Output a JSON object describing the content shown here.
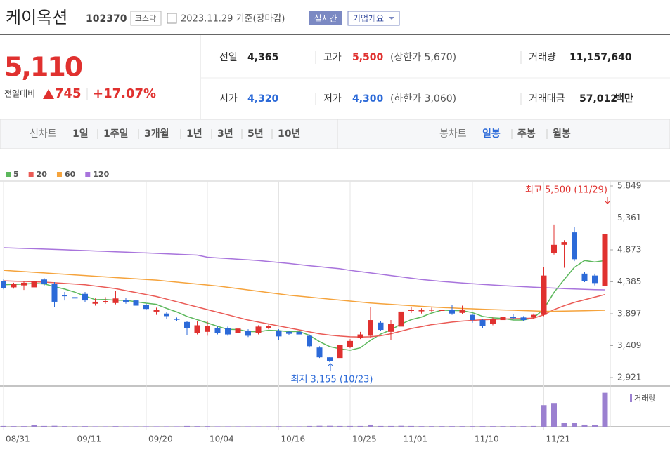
{
  "header": {
    "name": "케이옥션",
    "code": "102370",
    "market": "코스닥",
    "date": "2023.11.29 기준(장마감)",
    "realtime": "실시간",
    "company": "기업개요"
  },
  "quote": {
    "price": "5,110",
    "change_label": "전일대비",
    "change": "745",
    "rate": "+17.07%"
  },
  "stats": [
    {
      "label": "전일",
      "value": "4,365"
    },
    {
      "label": "고가",
      "value": "5,500",
      "extra": "(상한가 5,670)"
    },
    {
      "label": "거래량",
      "value": "11,157,640"
    },
    {
      "label": "시가",
      "value": "4,320"
    },
    {
      "label": "저가",
      "value": "4,300",
      "extra": "(하한가 3,060)"
    },
    {
      "label": "거래대금",
      "value": "57,012",
      "unit": "백만"
    }
  ],
  "tabs": {
    "line_label": "선차트",
    "line": [
      "1일",
      "1주일",
      "3개월",
      "1년",
      "3년",
      "5년",
      "10년"
    ],
    "candle_label": "봉차트",
    "candle": [
      "일봉",
      "주봉",
      "월봉"
    ]
  },
  "chart_data": {
    "type": "candlestick",
    "categories": [
      "08/31",
      null,
      null,
      null,
      null,
      null,
      null,
      "09/11",
      null,
      null,
      null,
      null,
      null,
      null,
      "09/20",
      null,
      null,
      null,
      null,
      null,
      "10/04",
      null,
      null,
      null,
      null,
      null,
      null,
      "10/16",
      null,
      null,
      null,
      null,
      null,
      null,
      "10/25",
      null,
      null,
      null,
      null,
      "11/01",
      null,
      null,
      null,
      null,
      null,
      null,
      "11/10",
      null,
      null,
      null,
      null,
      null,
      null,
      "11/21",
      null,
      null,
      null,
      null,
      null,
      null
    ],
    "open": [
      4400,
      4300,
      4330,
      4300,
      4420,
      4350,
      4180,
      4150,
      4200,
      4050,
      4080,
      4060,
      4110,
      4100,
      4030,
      3930,
      3900,
      3820,
      3770,
      3600,
      3620,
      3680,
      3680,
      3600,
      3640,
      3600,
      3680,
      3640,
      3620,
      3620,
      3560,
      3380,
      3230,
      3220,
      3390,
      3530,
      3560,
      3760,
      3620,
      3700,
      3940,
      3940,
      3950,
      3940,
      3960,
      3910,
      3880,
      3800,
      3740,
      3800,
      3850,
      3840,
      3840,
      3880,
      4830,
      4950,
      5140,
      4510,
      4480,
      4320
    ],
    "high": [
      4420,
      4370,
      4390,
      4640,
      4440,
      4380,
      4230,
      4170,
      4230,
      4130,
      4150,
      4250,
      4140,
      4130,
      4050,
      3990,
      3920,
      3840,
      3790,
      3780,
      3790,
      3700,
      3700,
      3700,
      3660,
      3720,
      3730,
      3660,
      3640,
      3640,
      3580,
      3400,
      3240,
      3440,
      3510,
      3620,
      4000,
      3780,
      3800,
      3960,
      4000,
      3980,
      3990,
      4000,
      4030,
      4020,
      3900,
      3820,
      3840,
      3870,
      3890,
      3860,
      3900,
      4610,
      5260,
      5020,
      5220,
      4540,
      4510,
      5500
    ],
    "low": [
      4270,
      4280,
      4260,
      4280,
      4330,
      4000,
      4100,
      4100,
      4080,
      4020,
      4050,
      4040,
      4050,
      4000,
      3950,
      3880,
      3820,
      3780,
      3570,
      3580,
      3560,
      3580,
      3560,
      3580,
      3540,
      3580,
      3660,
      3500,
      3570,
      3560,
      3380,
      3220,
      3155,
      3200,
      3370,
      3510,
      3530,
      3640,
      3500,
      3690,
      3910,
      3900,
      3920,
      3870,
      3880,
      3890,
      3760,
      3680,
      3720,
      3790,
      3810,
      3780,
      3820,
      3860,
      4800,
      4600,
      4700,
      4380,
      4330,
      4300
    ],
    "close": [
      4290,
      4350,
      4370,
      4400,
      4350,
      4080,
      4170,
      4130,
      4100,
      4080,
      4090,
      4130,
      4080,
      4020,
      3970,
      3960,
      3860,
      3810,
      3680,
      3720,
      3710,
      3600,
      3580,
      3670,
      3560,
      3700,
      3710,
      3550,
      3590,
      3580,
      3400,
      3230,
      3170,
      3420,
      3480,
      3580,
      3800,
      3650,
      3740,
      3930,
      3960,
      3950,
      3960,
      3960,
      3900,
      3950,
      3800,
      3710,
      3810,
      3850,
      3830,
      3800,
      3880,
      4480,
      4950,
      4990,
      4730,
      4400,
      4365,
      5110
    ],
    "up_color": "#e0312f",
    "down_color": "#2c6ad8",
    "series": [
      {
        "name": "5",
        "color": "#5cb85c",
        "values": [
          4340,
          4345,
          4350,
          4360,
          4352,
          4310,
          4274,
          4226,
          4166,
          4112,
          4114,
          4104,
          4102,
          4080,
          4058,
          4040,
          3978,
          3924,
          3856,
          3806,
          3756,
          3704,
          3658,
          3656,
          3624,
          3622,
          3644,
          3638,
          3622,
          3626,
          3566,
          3470,
          3394,
          3360,
          3340,
          3376,
          3490,
          3586,
          3650,
          3740,
          3806,
          3846,
          3908,
          3952,
          3946,
          3944,
          3914,
          3856,
          3834,
          3824,
          3800,
          3800,
          3834,
          3968,
          4222,
          4420,
          4606,
          4710,
          4687,
          4709
        ]
      },
      {
        "name": "20",
        "color": "#ea5a55",
        "values": [
          4400,
          4395,
          4390,
          4385,
          4380,
          4370,
          4360,
          4350,
          4340,
          4320,
          4300,
          4280,
          4250,
          4220,
          4190,
          4160,
          4120,
          4080,
          4040,
          4000,
          3960,
          3920,
          3880,
          3840,
          3800,
          3770,
          3740,
          3710,
          3680,
          3650,
          3620,
          3590,
          3570,
          3555,
          3545,
          3540,
          3545,
          3560,
          3590,
          3630,
          3670,
          3700,
          3730,
          3750,
          3770,
          3785,
          3795,
          3805,
          3810,
          3815,
          3820,
          3825,
          3830,
          3880,
          3960,
          4020,
          4070,
          4110,
          4150,
          4190
        ]
      },
      {
        "name": "60",
        "color": "#f5a33c",
        "values": [
          4560,
          4550,
          4540,
          4530,
          4520,
          4510,
          4500,
          4490,
          4480,
          4470,
          4460,
          4450,
          4440,
          4430,
          4420,
          4410,
          4395,
          4380,
          4365,
          4350,
          4335,
          4320,
          4300,
          4280,
          4260,
          4240,
          4220,
          4200,
          4180,
          4165,
          4150,
          4135,
          4120,
          4105,
          4090,
          4075,
          4060,
          4050,
          4040,
          4030,
          4020,
          4010,
          4000,
          3992,
          3985,
          3978,
          3972,
          3966,
          3960,
          3955,
          3950,
          3945,
          3940,
          3935,
          3935,
          3937,
          3940,
          3943,
          3946,
          3950
        ]
      },
      {
        "name": "120",
        "color": "#a874dc",
        "values": [
          4905,
          4900,
          4895,
          4890,
          4885,
          4880,
          4874,
          4868,
          4862,
          4856,
          4850,
          4844,
          4838,
          4832,
          4826,
          4820,
          4813,
          4806,
          4799,
          4792,
          4760,
          4750,
          4740,
          4730,
          4720,
          4710,
          4695,
          4680,
          4665,
          4648,
          4630,
          4615,
          4600,
          4585,
          4560,
          4540,
          4520,
          4500,
          4480,
          4460,
          4440,
          4420,
          4405,
          4390,
          4378,
          4366,
          4355,
          4345,
          4335,
          4326,
          4318,
          4310,
          4302,
          4295,
          4288,
          4281,
          4275,
          4270,
          4265,
          4262
        ]
      }
    ],
    "ylim": [
      2921,
      5849
    ],
    "yticks": [
      {
        "value": 2921,
        "label": "2,921"
      },
      {
        "value": 3409,
        "label": "3,409"
      },
      {
        "value": 3897,
        "label": "3,897"
      },
      {
        "value": 4385,
        "label": "4,385"
      },
      {
        "value": 4873,
        "label": "4,873"
      },
      {
        "value": 5361,
        "label": "5,361"
      },
      {
        "value": 5849,
        "label": "5,849"
      }
    ],
    "volume_name": "거래량",
    "volume_color": "#9b80d0",
    "volume_ylim": [
      0,
      12000000
    ],
    "volume": [
      250000,
      200000,
      200000,
      600000,
      250000,
      300000,
      200000,
      180000,
      200000,
      150000,
      150000,
      200000,
      150000,
      150000,
      150000,
      150000,
      150000,
      150000,
      250000,
      200000,
      200000,
      150000,
      150000,
      150000,
      150000,
      150000,
      150000,
      180000,
      150000,
      150000,
      250000,
      300000,
      300000,
      250000,
      250000,
      250000,
      700000,
      250000,
      250000,
      300000,
      250000,
      200000,
      200000,
      200000,
      200000,
      200000,
      200000,
      200000,
      200000,
      200000,
      200000,
      200000,
      250000,
      7100000,
      7800000,
      1300000,
      1200000,
      700000,
      600000,
      11157640
    ],
    "annotations": [
      {
        "text": "최고 5,500 (11/29)",
        "color": "#e0312f"
      },
      {
        "text": "최저 3,155 (10/23)",
        "color": "#2c6ad8"
      }
    ]
  }
}
